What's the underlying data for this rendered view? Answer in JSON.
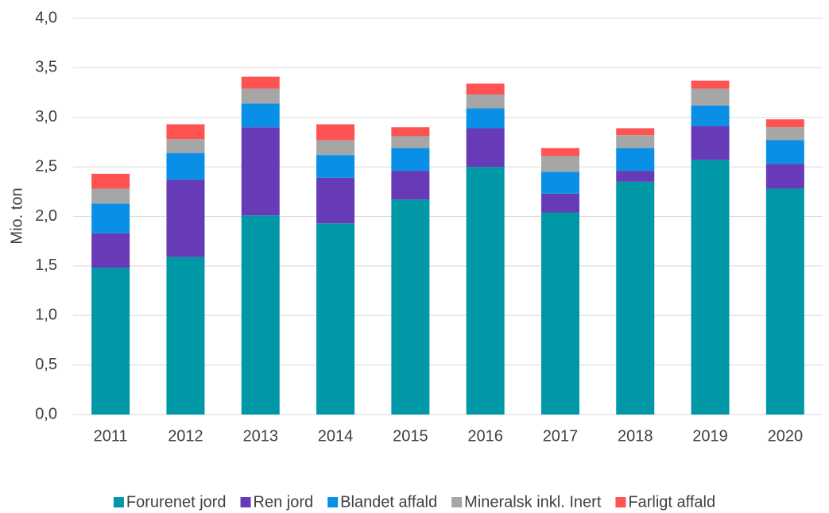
{
  "chart_data": {
    "type": "stacked_bar",
    "y_label": "Mio. ton",
    "categories": [
      "2011",
      "2012",
      "2013",
      "2014",
      "2015",
      "2016",
      "2017",
      "2018",
      "2019",
      "2020"
    ],
    "series": [
      {
        "name": "Forurenet jord",
        "color": "#0097a7",
        "values": [
          1.48,
          1.59,
          2.01,
          1.93,
          2.17,
          2.5,
          2.04,
          2.35,
          2.57,
          2.28
        ]
      },
      {
        "name": "Ren jord",
        "color": "#673ab7",
        "values": [
          0.35,
          0.78,
          0.89,
          0.46,
          0.29,
          0.39,
          0.19,
          0.11,
          0.34,
          0.25
        ]
      },
      {
        "name": "Blandet affald",
        "color": "#0a8fe6",
        "values": [
          0.3,
          0.27,
          0.24,
          0.23,
          0.23,
          0.2,
          0.22,
          0.23,
          0.21,
          0.24
        ]
      },
      {
        "name": "Mineralsk inkl. Inert",
        "color": "#a6a6a6",
        "values": [
          0.15,
          0.14,
          0.15,
          0.15,
          0.12,
          0.14,
          0.16,
          0.13,
          0.17,
          0.13
        ]
      },
      {
        "name": "Farligt affald",
        "color": "#ff5252",
        "values": [
          0.15,
          0.15,
          0.12,
          0.16,
          0.09,
          0.11,
          0.08,
          0.07,
          0.08,
          0.08
        ]
      }
    ],
    "ylim": [
      0,
      4
    ],
    "yticks": [
      {
        "value": 0,
        "label": "0,0"
      },
      {
        "value": 0.5,
        "label": "0,5"
      },
      {
        "value": 1,
        "label": "1,0"
      },
      {
        "value": 1.5,
        "label": "1,5"
      },
      {
        "value": 2,
        "label": "2,0"
      },
      {
        "value": 2.5,
        "label": "2,5"
      },
      {
        "value": 3,
        "label": "3,0"
      },
      {
        "value": 3.5,
        "label": "3,5"
      },
      {
        "value": 4,
        "label": "4,0"
      }
    ],
    "grid": true,
    "legend": "bottom"
  }
}
